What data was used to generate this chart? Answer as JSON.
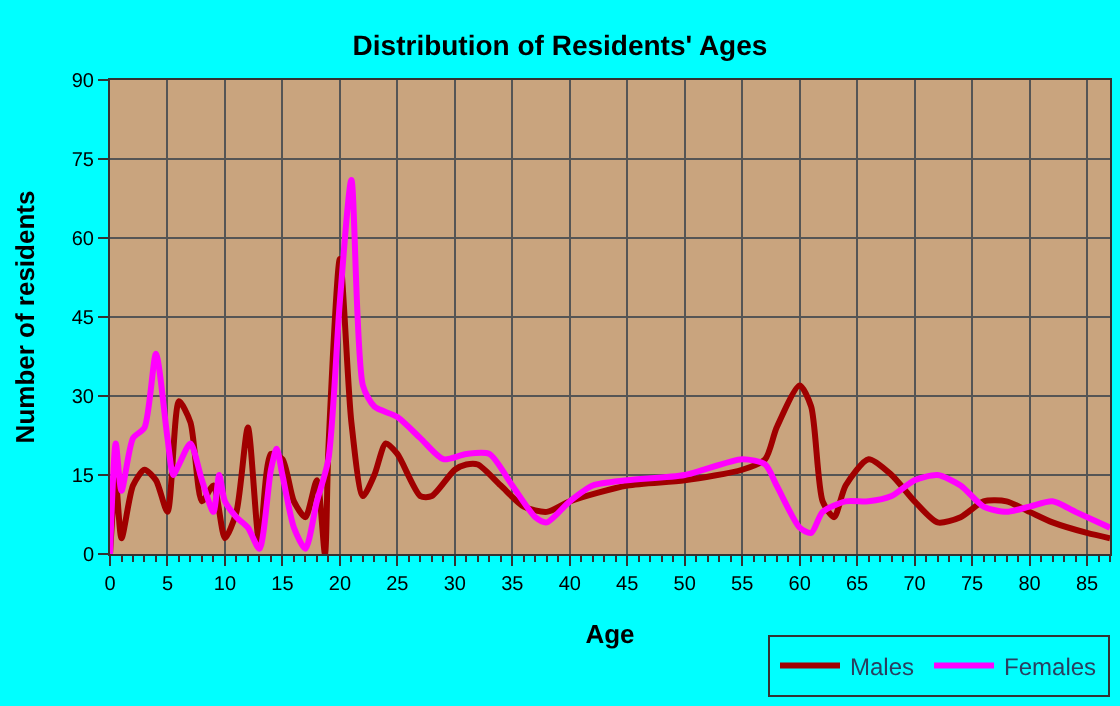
{
  "chart_data": {
    "type": "line",
    "title": "Distribution of Residents' Ages",
    "xlabel": "Age",
    "ylabel": "Number of residents",
    "xlim": [
      0,
      87
    ],
    "xticks": [
      0,
      5,
      10,
      15,
      20,
      25,
      30,
      35,
      40,
      45,
      50,
      55,
      60,
      65,
      70,
      75,
      80,
      85
    ],
    "ylim": [
      0,
      90
    ],
    "yticks": [
      0,
      15,
      30,
      45,
      60,
      75,
      90
    ],
    "grid": true,
    "legend": "bottom right",
    "marker": "none",
    "line_style": "solid",
    "series": [
      {
        "name": "Males",
        "color": "#a00000",
        "x": [
          0,
          0.5,
          1,
          2,
          3,
          4,
          5,
          6,
          7,
          8,
          9,
          10,
          11,
          12,
          13,
          14,
          15,
          16,
          17,
          18,
          18.7,
          19,
          20,
          21,
          22,
          23,
          24,
          25,
          27,
          28,
          30,
          31,
          32,
          34,
          36,
          38,
          40,
          45,
          50,
          55,
          57,
          58,
          60,
          61,
          62,
          63,
          64,
          66,
          68,
          70,
          72,
          74,
          76,
          78,
          80,
          82,
          85,
          87
        ],
        "values": [
          0,
          14,
          3,
          13,
          16,
          14,
          8,
          29,
          25,
          10,
          13,
          3,
          8,
          24,
          2,
          19,
          18,
          10,
          7,
          14,
          0,
          20,
          56,
          25,
          11,
          15,
          21,
          19,
          11,
          11,
          16,
          17,
          17,
          13,
          9,
          8,
          10,
          13,
          14,
          16,
          18,
          24,
          32,
          28,
          10,
          7,
          13,
          18,
          15,
          10,
          6,
          7,
          10,
          10,
          8,
          6,
          4,
          3
        ]
      },
      {
        "name": "Females",
        "color": "#ff00ff",
        "x": [
          0,
          0.5,
          1,
          2,
          3,
          4,
          5,
          5.5,
          6,
          7,
          8,
          9,
          9.5,
          10,
          11,
          12,
          13,
          14,
          14.5,
          15,
          16,
          17,
          18,
          19,
          20,
          21,
          22,
          23,
          25,
          27,
          29,
          31,
          33,
          35,
          37,
          38,
          40,
          42,
          45,
          50,
          55,
          57,
          58,
          60,
          61,
          62,
          64,
          66,
          68,
          70,
          72,
          74,
          76,
          78,
          80,
          82,
          84,
          87
        ],
        "values": [
          0,
          21,
          12,
          22,
          24,
          38,
          22,
          15,
          17,
          21,
          14,
          8,
          15,
          10,
          7,
          5,
          1,
          16,
          20,
          15,
          5,
          1,
          10,
          18,
          48,
          71,
          32,
          28,
          26,
          22,
          18,
          19,
          19,
          13,
          7,
          6,
          10,
          13,
          14,
          15,
          18,
          17,
          13,
          5,
          4,
          8,
          10,
          10,
          11,
          14,
          15,
          13,
          9,
          8,
          9,
          10,
          8,
          5
        ]
      }
    ]
  }
}
